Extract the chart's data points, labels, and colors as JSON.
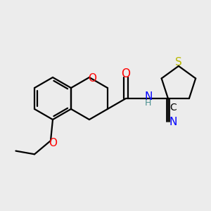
{
  "bg_color": "#ececec",
  "bond_color": "#000000",
  "bond_width": 1.6,
  "atom_colors": {
    "O": "#ff0000",
    "N": "#0000ff",
    "S": "#b8b800",
    "C": "#000000",
    "H": "#4a9090"
  },
  "font_size": 10,
  "fig_size": [
    3.0,
    3.0
  ],
  "dpi": 100
}
